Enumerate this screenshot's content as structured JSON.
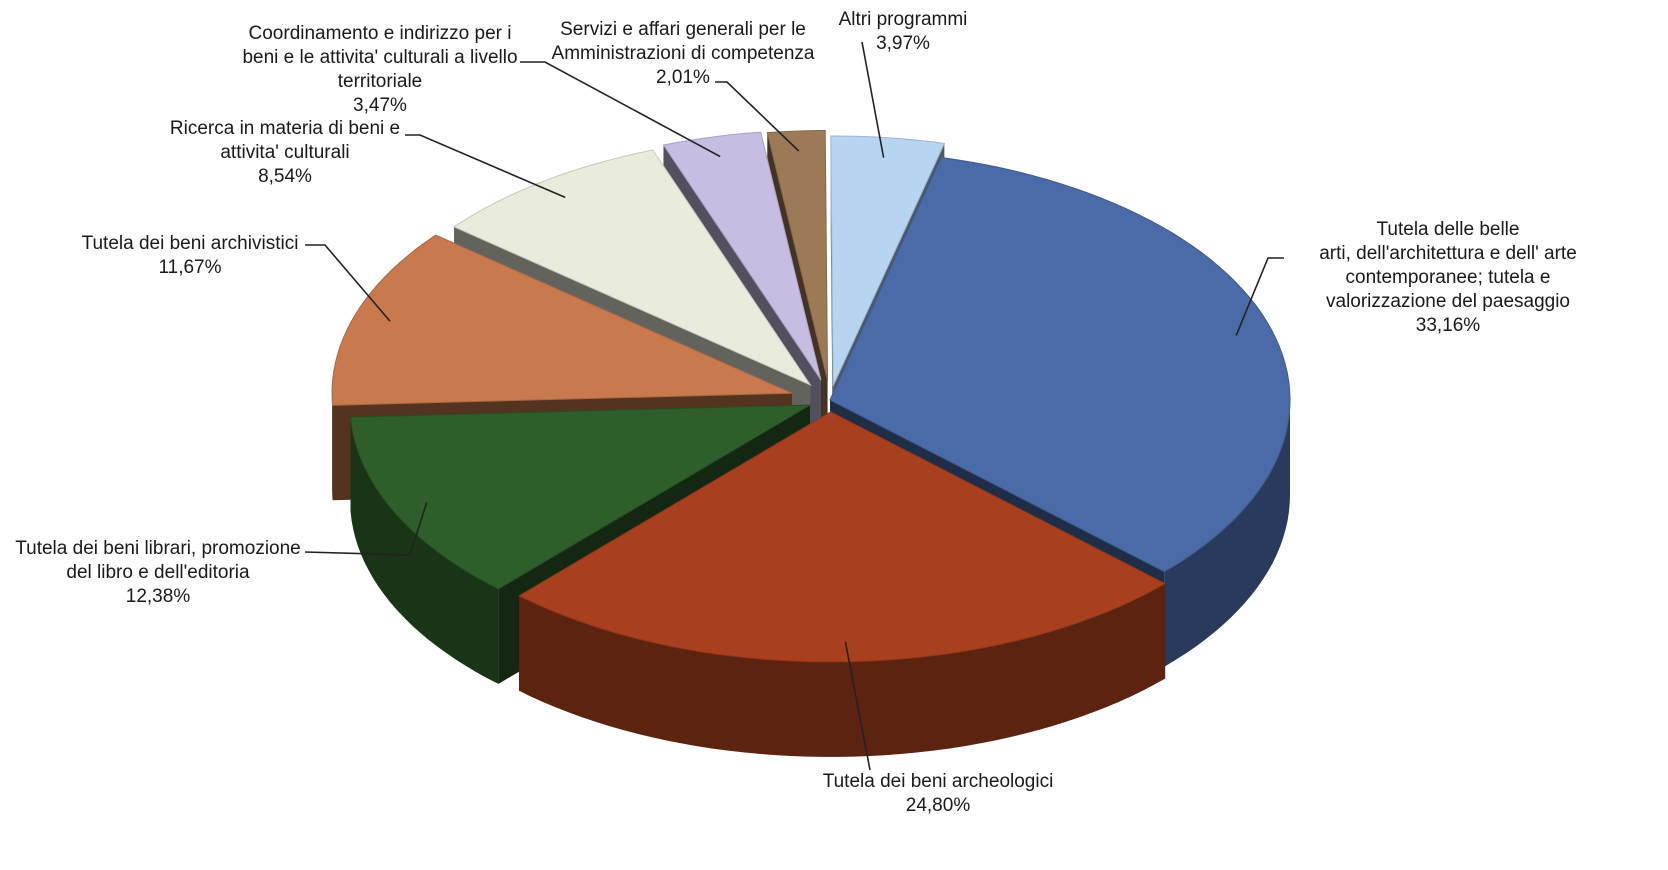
{
  "chart_data": {
    "type": "pie",
    "style": "3d-exploded",
    "title": "",
    "slices": [
      {
        "lines": [
          "Tutela delle belle",
          "arti, dell'architettura e dell' arte",
          "contemporanee; tutela e",
          "valorizzazione del paesaggio"
        ],
        "pct_label": "33,16%",
        "value": 33.16,
        "color": "#4a6aa8"
      },
      {
        "lines": [
          "Tutela dei beni archeologici"
        ],
        "pct_label": "24,80%",
        "value": 24.8,
        "color": "#a8401f"
      },
      {
        "lines": [
          "Tutela dei beni librari, promozione",
          "del libro e dell'editoria"
        ],
        "pct_label": "12,38%",
        "value": 12.38,
        "color": "#2e5e2a"
      },
      {
        "lines": [
          "Tutela dei beni archivistici"
        ],
        "pct_label": "11,67%",
        "value": 11.67,
        "color": "#c87a4e"
      },
      {
        "lines": [
          "Ricerca in materia di beni e",
          "attivita' culturali"
        ],
        "pct_label": "8,54%",
        "value": 8.54,
        "color": "#e9ecdc"
      },
      {
        "lines": [
          "Coordinamento e indirizzo per i",
          "beni e le attivita' culturali a livello",
          "territoriale"
        ],
        "pct_label": "3,47%",
        "value": 3.47,
        "color": "#c7bde2"
      },
      {
        "lines": [
          "Servizi e affari generali per le",
          "Amministrazioni di competenza"
        ],
        "pct_label": "2,01%",
        "value": 2.01,
        "color": "#9c7a56"
      },
      {
        "lines": [
          "Altri programmi"
        ],
        "pct_label": "3,97%",
        "value": 3.97,
        "color": "#b7d4f0"
      }
    ]
  }
}
